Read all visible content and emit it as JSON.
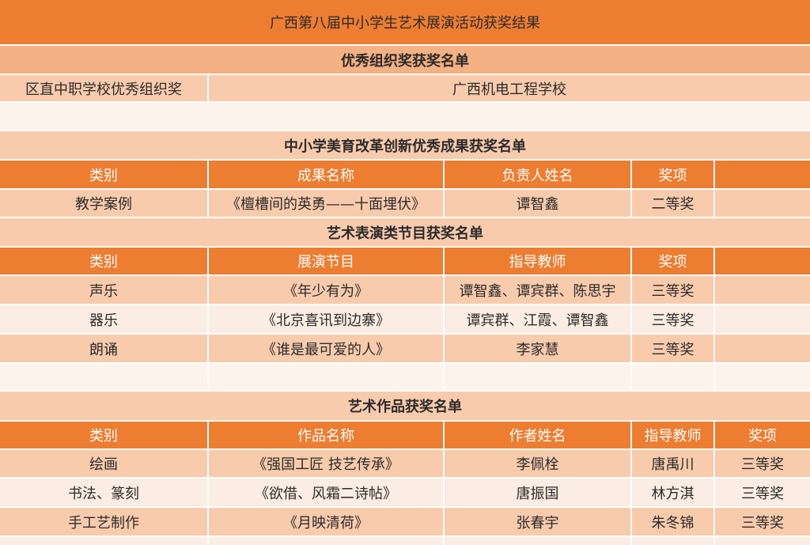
{
  "title": "广西第八届中小学生艺术展演活动获奖结果",
  "colors": {
    "title_bg": "#ED7D31",
    "header_bg": "#ED7D31",
    "section_bg": "#F8CBAD",
    "row_bg": "#F8CBAD",
    "row_alt_bg": "#FBEDE3"
  },
  "organization_award": {
    "heading": "优秀组织奖获奖名单",
    "rows": [
      [
        "区直中职学校优秀组织奖",
        "广西机电工程学校"
      ]
    ]
  },
  "reform_award": {
    "heading": "中小学美育改革创新优秀成果获奖名单",
    "columns": [
      "类别",
      "成果名称",
      "负责人姓名",
      "奖项",
      ""
    ],
    "rows": [
      [
        "教学案例",
        "《檀槽间的英勇——十面埋伏》",
        "谭智鑫",
        "二等奖",
        ""
      ]
    ]
  },
  "performance_award": {
    "heading": "艺术表演类节目获奖名单",
    "columns": [
      "类别",
      "展演节目",
      "指导教师",
      "奖项",
      ""
    ],
    "rows": [
      [
        "声乐",
        "《年少有为》",
        "谭智鑫、谭宾群、陈思宇",
        "三等奖",
        ""
      ],
      [
        "器乐",
        "《北京喜讯到边寨》",
        "谭宾群、江霞、谭智鑫",
        "三等奖",
        ""
      ],
      [
        "朗诵",
        "《谁是最可爱的人》",
        "李家慧",
        "三等奖",
        ""
      ]
    ]
  },
  "artwork_award": {
    "heading": "艺术作品获奖名单",
    "columns": [
      "类别",
      "作品名称",
      "作者姓名",
      "指导教师",
      "奖项"
    ],
    "rows": [
      [
        "绘画",
        "《强国工匠  技艺传承》",
        "李佩栓",
        "唐禹川",
        "三等奖"
      ],
      [
        "书法、篆刻",
        "《欲借、风霜二诗帖》",
        "唐振国",
        "林方淇",
        "三等奖"
      ],
      [
        "手工艺制作",
        "《月映清荷》",
        "张春宇",
        "朱冬锦",
        "三等奖"
      ]
    ]
  }
}
